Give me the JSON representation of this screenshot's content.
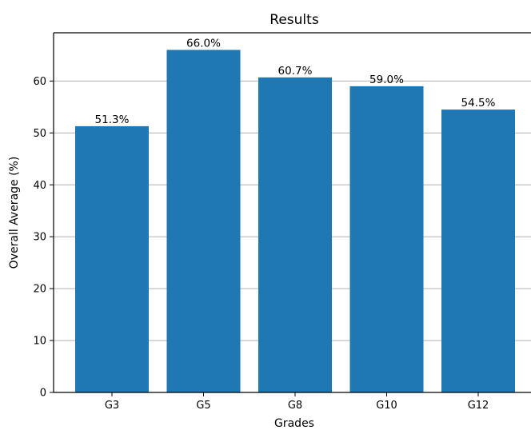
{
  "chart_data": {
    "type": "bar",
    "title": "Results",
    "xlabel": "Grades",
    "ylabel": "Overall Average (%)",
    "categories": [
      "G3",
      "G5",
      "G8",
      "G10",
      "G12"
    ],
    "values": [
      51.3,
      66.0,
      60.7,
      59.0,
      54.5
    ],
    "data_labels": [
      "51.3%",
      "66.0%",
      "60.7%",
      "59.0%",
      "54.5%"
    ],
    "ylim": [
      0,
      69.3
    ],
    "yticks": [
      0,
      10,
      20,
      30,
      40,
      50,
      60
    ],
    "grid": "horizontal",
    "legend": "none",
    "bar_color": "#1f77b4",
    "grid_color": "#b0b0b0"
  }
}
